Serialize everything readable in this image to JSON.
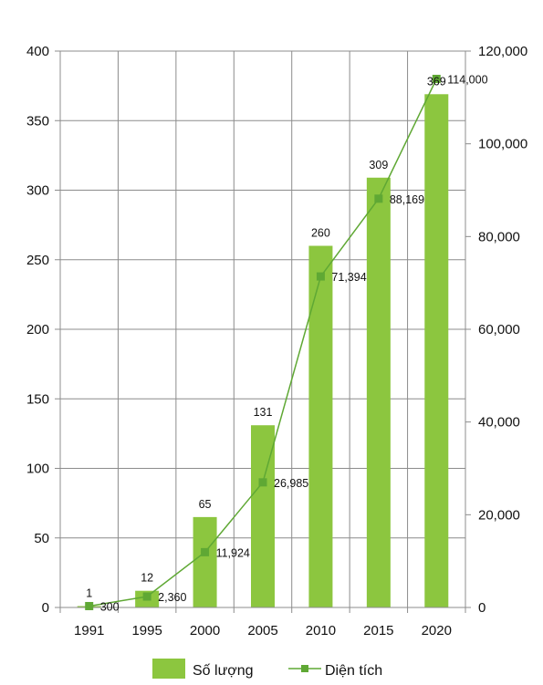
{
  "chart_data": {
    "type": "bar",
    "categories": [
      "1991",
      "1995",
      "2000",
      "2005",
      "2010",
      "2015",
      "2020"
    ],
    "series": [
      {
        "name": "Số lượng",
        "type": "bar",
        "axis": "left",
        "color": "#8CC63F",
        "values": [
          1,
          12,
          65,
          131,
          260,
          309,
          369
        ],
        "labels": [
          "1",
          "12",
          "65",
          "131",
          "260",
          "309",
          "369"
        ]
      },
      {
        "name": "Diện tích",
        "type": "line",
        "axis": "right",
        "color": "#5FA834",
        "marker": "square",
        "values": [
          300,
          2360,
          11924,
          26985,
          71394,
          88169,
          114000
        ],
        "labels": [
          "300",
          "2,360",
          "11,924",
          "26,985",
          "71,394",
          "88,169",
          "114,000"
        ]
      }
    ],
    "y_left": {
      "ylim": [
        0,
        400
      ],
      "ticks": [
        "0",
        "50",
        "100",
        "150",
        "200",
        "250",
        "300",
        "350",
        "400"
      ]
    },
    "y_right": {
      "ylim": [
        0,
        120000
      ],
      "ticks": [
        "0",
        "20,000",
        "40,000",
        "60,000",
        "80,000",
        "100,000",
        "120,000"
      ]
    },
    "grid": true,
    "legend": "bottom-center"
  }
}
